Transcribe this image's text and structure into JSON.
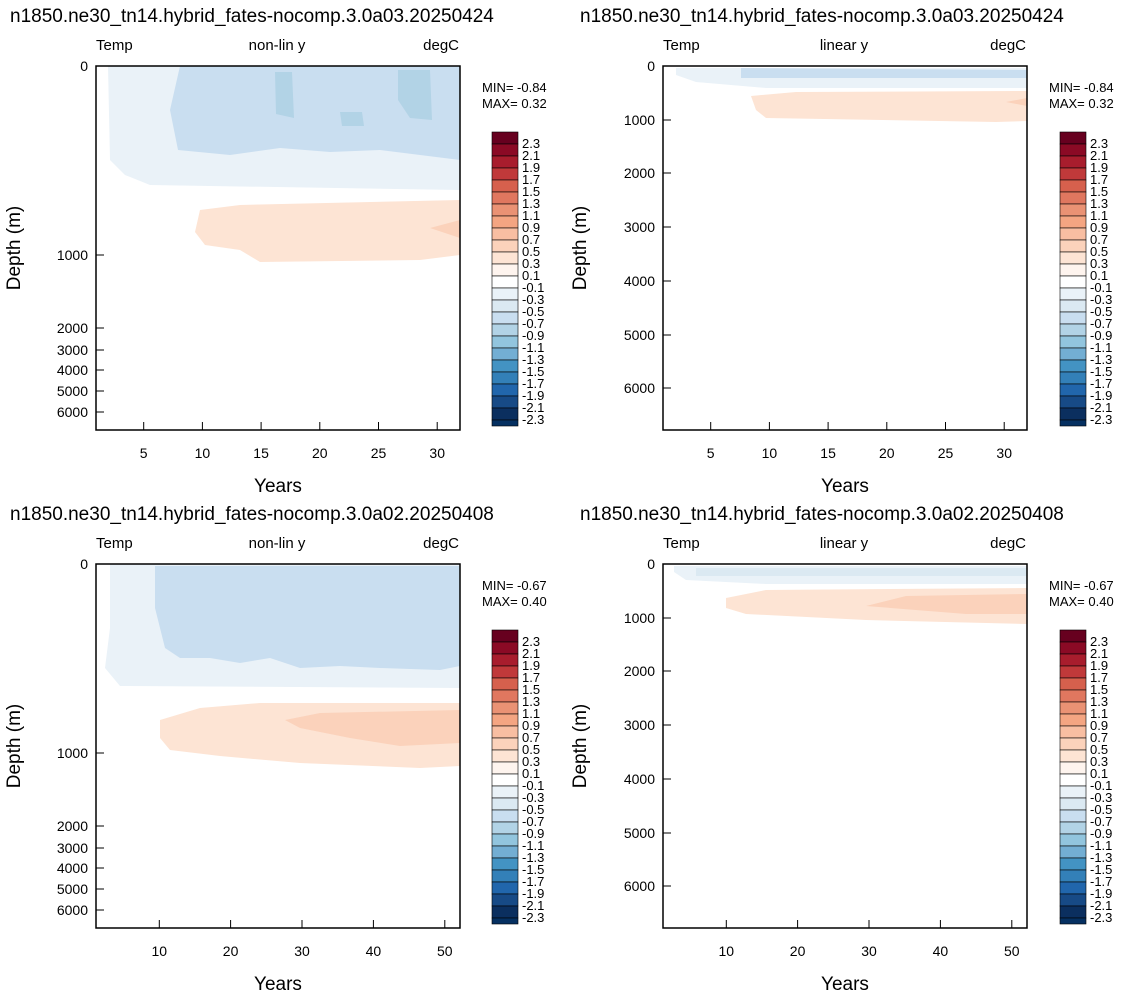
{
  "palette": {
    "levels": [
      -2.3,
      -2.1,
      -1.9,
      -1.7,
      -1.5,
      -1.3,
      -1.1,
      -0.9,
      -0.7,
      -0.5,
      -0.3,
      -0.1,
      0.1,
      0.3,
      0.5,
      0.7,
      0.9,
      1.1,
      1.3,
      1.5,
      1.7,
      1.9,
      2.1,
      2.3
    ],
    "level_labels": [
      "2.3",
      "2.1",
      "1.9",
      "1.7",
      "1.5",
      "1.3",
      "1.1",
      "0.9",
      "0.7",
      "0.5",
      "0.3",
      "0.1",
      "-0.1",
      "-0.3",
      "-0.5",
      "-0.7",
      "-0.9",
      "-1.1",
      "-1.3",
      "-1.5",
      "-1.7",
      "-1.9",
      "-2.1",
      "-2.3"
    ],
    "colors_top_to_bottom": [
      "#67001f",
      "#8b0a25",
      "#a81d2d",
      "#c0393a",
      "#d6604d",
      "#e0775f",
      "#ea9274",
      "#f4a582",
      "#f8bea2",
      "#fbd2bb",
      "#fde4d4",
      "#fef4ee",
      "#ffffff",
      "#eaf2f8",
      "#dbe9f2",
      "#c9def0",
      "#b2d3e6",
      "#92c5de",
      "#73aed3",
      "#4393c3",
      "#3380b8",
      "#2166ac",
      "#174a86",
      "#0b2f5f",
      "#053061"
    ]
  },
  "chart_data": [
    {
      "type": "heatmap",
      "title": "n1850.ne30_tn14.hybrid_fates-nocomp.3.0a03.20250424",
      "subtitle_left": "Temp",
      "subtitle_center": "non-lin y",
      "subtitle_right": "degC",
      "xlabel": "Years",
      "ylabel": "Depth (m)",
      "xlim": [
        1,
        32
      ],
      "ylim": [
        0,
        6500
      ],
      "y_scale": "non-linear",
      "x_ticks": [
        5,
        10,
        15,
        20,
        25,
        30
      ],
      "y_ticks": [
        0,
        1000,
        2000,
        3000,
        4000,
        5000,
        6000
      ],
      "min_label": "MIN= -0.84",
      "max_label": "MAX=  0.32",
      "features": [
        {
          "value": -0.2,
          "x_start": 2.2,
          "depth_top": 10,
          "depth_bottom": 660
        },
        {
          "value": -0.4,
          "x_start": 8.5,
          "depth_top": 15,
          "depth_bottom": 430
        },
        {
          "value": 0.2,
          "x_start": 8.5,
          "depth_top": 750,
          "depth_bottom": 1015
        }
      ]
    },
    {
      "type": "heatmap",
      "title": "n1850.ne30_tn14.hybrid_fates-nocomp.3.0a03.20250424",
      "subtitle_left": "Temp",
      "subtitle_center": "linear y",
      "subtitle_right": "degC",
      "xlabel": "Years",
      "ylabel": "Depth (m)",
      "xlim": [
        1,
        32
      ],
      "ylim": [
        0,
        6750
      ],
      "y_scale": "linear",
      "x_ticks": [
        5,
        10,
        15,
        20,
        25,
        30
      ],
      "y_ticks": [
        0,
        1000,
        2000,
        3000,
        4000,
        5000,
        6000
      ],
      "min_label": "MIN= -0.84",
      "max_label": "MAX=  0.32",
      "features": [
        {
          "value": -0.2,
          "x_start": 2.2,
          "depth_top": 10,
          "depth_bottom": 380
        },
        {
          "value": -0.4,
          "x_start": 10,
          "depth_top": 30,
          "depth_bottom": 230
        },
        {
          "value": 0.2,
          "x_start": 9.5,
          "depth_top": 480,
          "depth_bottom": 1010
        }
      ]
    },
    {
      "type": "heatmap",
      "title": "n1850.ne30_tn14.hybrid_fates-nocomp.3.0a02.20250408",
      "subtitle_left": "Temp",
      "subtitle_center": "non-lin y",
      "subtitle_right": "degC",
      "xlabel": "Years",
      "ylabel": "Depth (m)",
      "xlim": [
        1,
        52
      ],
      "ylim": [
        0,
        6500
      ],
      "y_scale": "non-linear",
      "x_ticks": [
        10,
        20,
        30,
        40,
        50
      ],
      "y_ticks": [
        0,
        1000,
        2000,
        3000,
        4000,
        5000,
        6000
      ],
      "min_label": "MIN= -0.67",
      "max_label": "MAX=  0.40",
      "features": [
        {
          "value": -0.2,
          "x_start": 2.2,
          "depth_top": 10,
          "depth_bottom": 640
        },
        {
          "value": -0.4,
          "x_start": 10,
          "depth_top": 20,
          "depth_bottom": 520
        },
        {
          "value": 0.2,
          "x_start": 10,
          "depth_top": 700,
          "depth_bottom": 1140
        },
        {
          "value": 0.4,
          "x_start": 28,
          "depth_top": 780,
          "depth_bottom": 960
        }
      ]
    },
    {
      "type": "heatmap",
      "title": "n1850.ne30_tn14.hybrid_fates-nocomp.3.0a02.20250408",
      "subtitle_left": "Temp",
      "subtitle_center": "linear y",
      "subtitle_right": "degC",
      "xlabel": "Years",
      "ylabel": "Depth (m)",
      "xlim": [
        1,
        52
      ],
      "ylim": [
        0,
        6750
      ],
      "y_scale": "linear",
      "x_ticks": [
        10,
        20,
        30,
        40,
        50
      ],
      "y_ticks": [
        0,
        1000,
        2000,
        3000,
        4000,
        5000,
        6000
      ],
      "min_label": "MIN= -0.67",
      "max_label": "MAX=  0.40",
      "features": [
        {
          "value": -0.2,
          "x_start": 2.2,
          "depth_top": 10,
          "depth_bottom": 380
        },
        {
          "value": 0.2,
          "x_start": 8,
          "depth_top": 440,
          "depth_bottom": 1130
        },
        {
          "value": 0.4,
          "x_start": 25,
          "depth_top": 560,
          "depth_bottom": 950
        }
      ]
    }
  ]
}
